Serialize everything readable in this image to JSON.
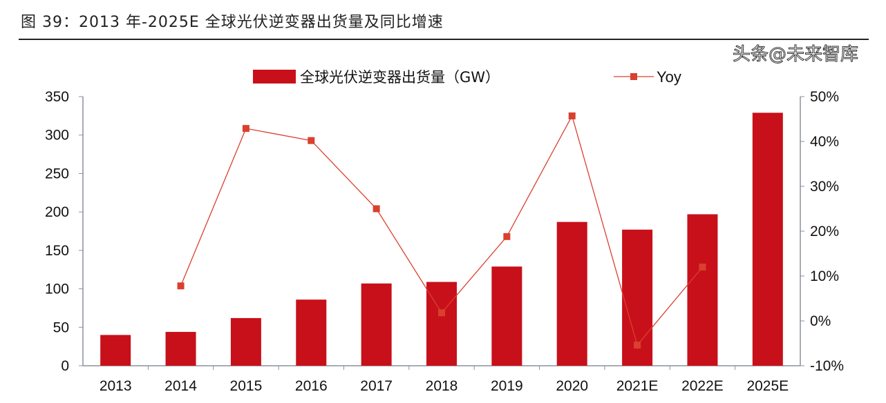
{
  "title": "图 39：2013 年-2025E 全球光伏逆变器出货量及同比增速",
  "watermark": "头条@未来智库",
  "chart_data": {
    "type": "bar+line",
    "categories": [
      "2013",
      "2014",
      "2015",
      "2016",
      "2017",
      "2018",
      "2019",
      "2020",
      "2021E",
      "2022E",
      "2025E"
    ],
    "series": [
      {
        "name": "全球光伏逆变器出货量（GW）",
        "type": "bar",
        "axis": "left",
        "color": "#c8101a",
        "values": [
          40,
          44,
          62,
          86,
          107,
          109,
          129,
          187,
          177,
          197,
          329
        ]
      },
      {
        "name": "Yoy",
        "type": "line",
        "axis": "right",
        "color": "#d9402e",
        "values": [
          null,
          7.8,
          42.9,
          40.2,
          25.0,
          1.8,
          18.8,
          45.7,
          -5.4,
          12.0,
          null
        ]
      }
    ],
    "y_left": {
      "range": [
        0,
        350
      ],
      "ticks": [
        "0",
        "50",
        "100",
        "150",
        "200",
        "250",
        "300",
        "350"
      ]
    },
    "y_right": {
      "range": [
        -10,
        50
      ],
      "unit": "%",
      "ticks": [
        "-10%",
        "0%",
        "10%",
        "20%",
        "30%",
        "40%",
        "50%"
      ]
    },
    "legend": "top-center",
    "grid": false
  }
}
